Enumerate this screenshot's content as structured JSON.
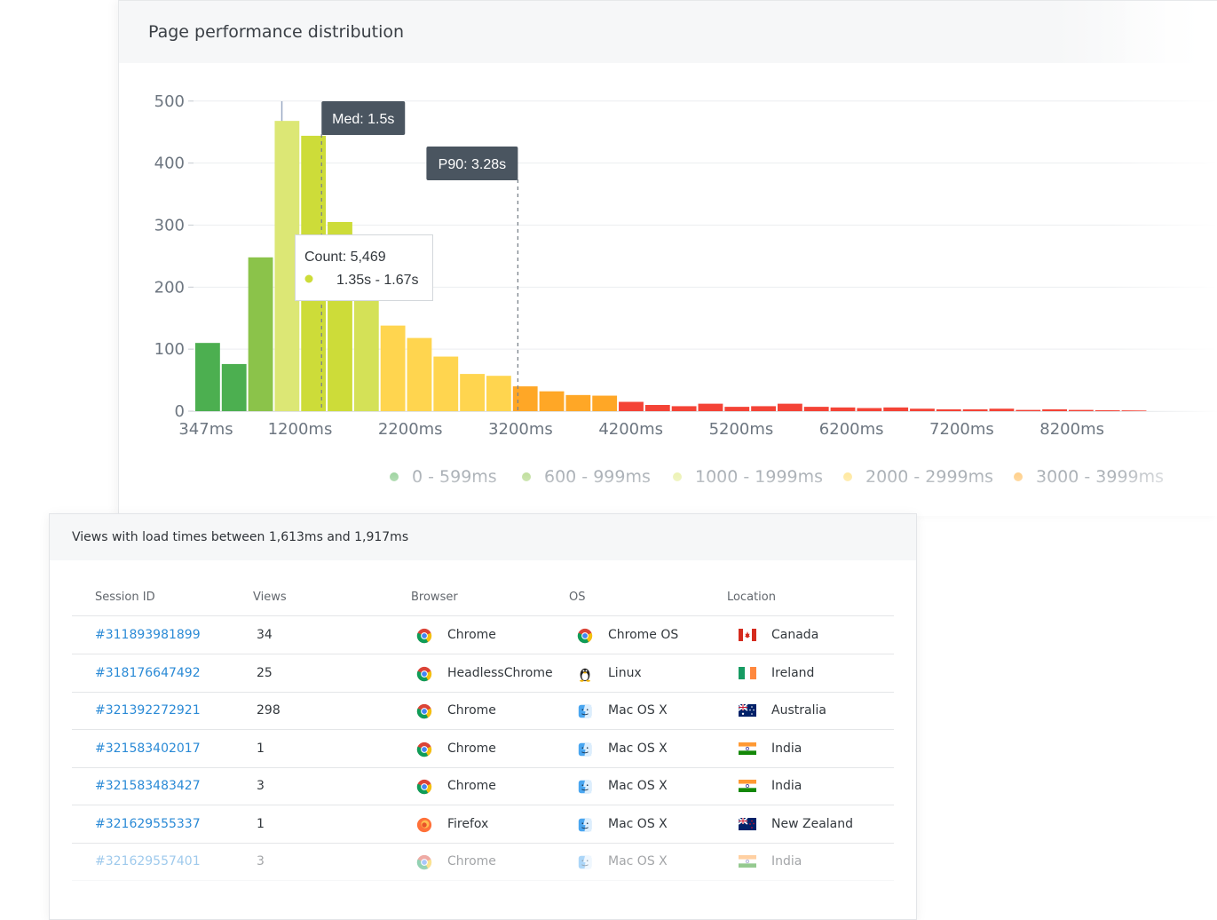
{
  "chart_card": {
    "title": "Page performance distribution"
  },
  "chart_data": {
    "type": "bar",
    "title": "Page performance distribution",
    "ylim": [
      0,
      500
    ],
    "y_ticks": [
      "0",
      "100",
      "200",
      "300",
      "400",
      "500"
    ],
    "x_tick_labels": [
      "347ms",
      "1200ms",
      "2200ms",
      "3200ms",
      "4200ms",
      "5200ms",
      "6200ms",
      "7200ms",
      "8200ms"
    ],
    "x_tick_positions_ms": [
      347,
      1200,
      2200,
      3200,
      4200,
      5200,
      6200,
      7200,
      8200
    ],
    "grid": true,
    "legend_placement": "bottom",
    "bars": [
      {
        "start_ms": 347,
        "value": 110,
        "color": "#4caf50"
      },
      {
        "start_ms": 587,
        "value": 76,
        "color": "#4caf50"
      },
      {
        "start_ms": 827,
        "value": 248,
        "color": "#8bc34a"
      },
      {
        "start_ms": 1067,
        "value": 468,
        "color": "#dce775"
      },
      {
        "start_ms": 1307,
        "value": 444,
        "color": "#cddc39"
      },
      {
        "start_ms": 1547,
        "value": 305,
        "color": "#cddc39"
      },
      {
        "start_ms": 1787,
        "value": 195,
        "color": "#d4e157"
      },
      {
        "start_ms": 2027,
        "value": 138,
        "color": "#ffd54f"
      },
      {
        "start_ms": 2267,
        "value": 118,
        "color": "#ffd54f"
      },
      {
        "start_ms": 2507,
        "value": 88,
        "color": "#ffd54f"
      },
      {
        "start_ms": 2747,
        "value": 60,
        "color": "#ffd54f"
      },
      {
        "start_ms": 2987,
        "value": 57,
        "color": "#ffd54f"
      },
      {
        "start_ms": 3227,
        "value": 40,
        "color": "#ffa726"
      },
      {
        "start_ms": 3467,
        "value": 32,
        "color": "#ffa726"
      },
      {
        "start_ms": 3707,
        "value": 26,
        "color": "#ffa726"
      },
      {
        "start_ms": 3947,
        "value": 25,
        "color": "#ffa726"
      },
      {
        "start_ms": 4187,
        "value": 15,
        "color": "#f44336"
      },
      {
        "start_ms": 4427,
        "value": 10,
        "color": "#f44336"
      },
      {
        "start_ms": 4667,
        "value": 8,
        "color": "#f44336"
      },
      {
        "start_ms": 4907,
        "value": 12,
        "color": "#f44336"
      },
      {
        "start_ms": 5147,
        "value": 7,
        "color": "#f44336"
      },
      {
        "start_ms": 5387,
        "value": 8,
        "color": "#f44336"
      },
      {
        "start_ms": 5627,
        "value": 12,
        "color": "#f44336"
      },
      {
        "start_ms": 5867,
        "value": 7,
        "color": "#f44336"
      },
      {
        "start_ms": 6107,
        "value": 6,
        "color": "#f44336"
      },
      {
        "start_ms": 6347,
        "value": 5,
        "color": "#f44336"
      },
      {
        "start_ms": 6587,
        "value": 6,
        "color": "#f44336"
      },
      {
        "start_ms": 6827,
        "value": 4,
        "color": "#f44336"
      },
      {
        "start_ms": 7067,
        "value": 3,
        "color": "#f44336"
      },
      {
        "start_ms": 7307,
        "value": 3,
        "color": "#f44336"
      },
      {
        "start_ms": 7547,
        "value": 4,
        "color": "#f44336"
      },
      {
        "start_ms": 7787,
        "value": 2,
        "color": "#f44336"
      },
      {
        "start_ms": 8027,
        "value": 3,
        "color": "#f44336"
      },
      {
        "start_ms": 8267,
        "value": 2,
        "color": "#f44336"
      },
      {
        "start_ms": 8507,
        "value": 1,
        "color": "#f44336"
      },
      {
        "start_ms": 8747,
        "value": 1,
        "color": "#f44336"
      }
    ],
    "bin_width_ms": 240,
    "hover_line_ms": 1140,
    "markers": [
      {
        "label": "Med: 1.5s",
        "value_ms": 1500
      },
      {
        "label": "P90: 3.28s",
        "value_ms": 3280
      }
    ],
    "tooltip": {
      "count_label": "Count: 5,469",
      "range_label": "1.35s - 1.67s",
      "dot_color": "#cddc39"
    },
    "legend": [
      {
        "label": "0 - 599ms",
        "color": "#4caf50"
      },
      {
        "label": "600 - 999ms",
        "color": "#8bc34a"
      },
      {
        "label": "1000 - 1999ms",
        "color": "#dce775"
      },
      {
        "label": "2000 - 2999ms",
        "color": "#ffd54f"
      },
      {
        "label": "3000 - 3999ms",
        "color": "#ffa726"
      }
    ]
  },
  "table": {
    "title": "Views with load times between 1,613ms and 1,917ms",
    "columns": [
      "Session ID",
      "Views",
      "Browser",
      "OS",
      "Location"
    ],
    "rows": [
      {
        "session": "#311893981899",
        "views": "34",
        "browser": "Chrome",
        "browser_icon": "chrome-icon",
        "os": "Chrome OS",
        "os_icon": "chrome-icon",
        "location": "Canada",
        "flag": "canada-flag-icon"
      },
      {
        "session": "#318176647492",
        "views": "25",
        "browser": "HeadlessChrome",
        "browser_icon": "chrome-icon",
        "os": "Linux",
        "os_icon": "linux-tux-icon",
        "location": "Ireland",
        "flag": "ireland-flag-icon"
      },
      {
        "session": "#321392272921",
        "views": "298",
        "browser": "Chrome",
        "browser_icon": "chrome-icon",
        "os": "Mac OS X",
        "os_icon": "finder-icon",
        "location": "Australia",
        "flag": "australia-flag-icon"
      },
      {
        "session": "#321583402017",
        "views": "1",
        "browser": "Chrome",
        "browser_icon": "chrome-icon",
        "os": "Mac OS X",
        "os_icon": "finder-icon",
        "location": "India",
        "flag": "india-flag-icon"
      },
      {
        "session": "#321583483427",
        "views": "3",
        "browser": "Chrome",
        "browser_icon": "chrome-icon",
        "os": "Mac OS X",
        "os_icon": "finder-icon",
        "location": "India",
        "flag": "india-flag-icon"
      },
      {
        "session": "#321629555337",
        "views": "1",
        "browser": "Firefox",
        "browser_icon": "firefox-icon",
        "os": "Mac OS X",
        "os_icon": "finder-icon",
        "location": "New Zealand",
        "flag": "new-zealand-flag-icon"
      },
      {
        "session": "#321629557401",
        "views": "3",
        "browser": "Chrome",
        "browser_icon": "chrome-icon",
        "os": "Mac OS X",
        "os_icon": "finder-icon",
        "location": "India",
        "flag": "india-flag-icon"
      }
    ]
  },
  "colors": {
    "link": "#2a8ad6",
    "tooltip_dark": "#4a5560"
  }
}
